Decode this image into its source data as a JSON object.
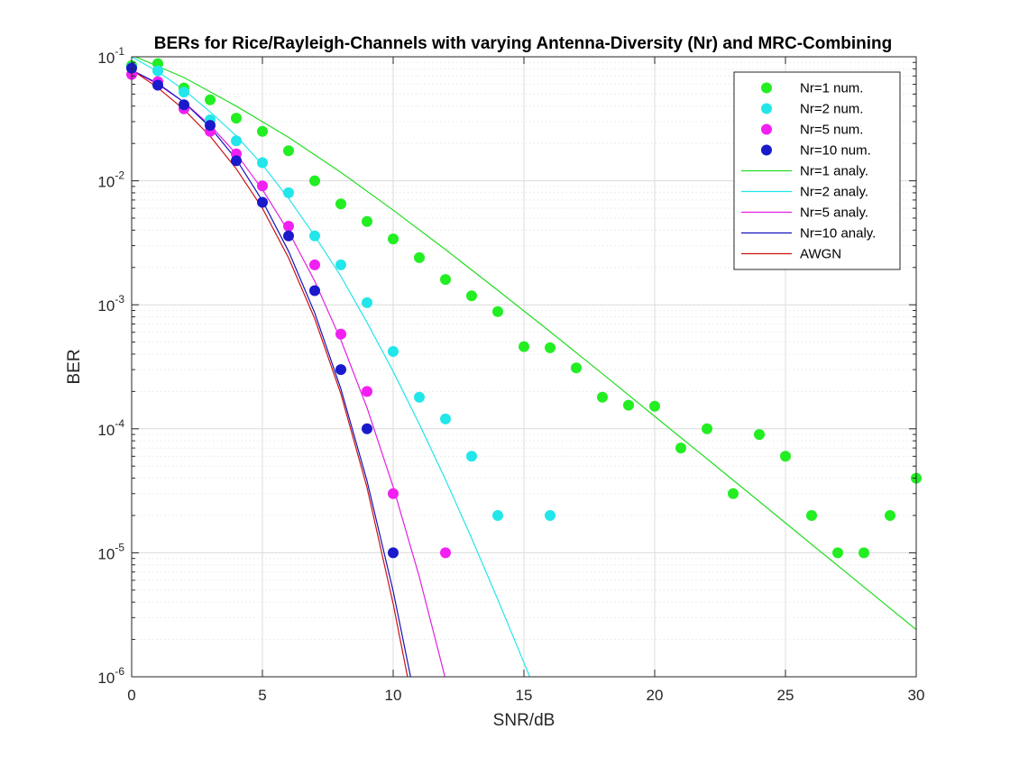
{
  "chart_data": {
    "type": "line",
    "title": "BERs for Rice/Rayleigh-Channels with varying Antenna-Diversity (Nr) and MRC-Combining",
    "xlabel": "SNR/dB",
    "ylabel": "BER",
    "xlim": [
      0,
      30
    ],
    "ylim": [
      1e-06,
      0.1
    ],
    "yscale": "log",
    "grid": true,
    "minor_grid": true,
    "legend_position": "top-right",
    "x_ticks": [
      "0",
      "5",
      "10",
      "15",
      "20",
      "25",
      "30"
    ],
    "y_ticks": [
      {
        "base": "10",
        "exp": "-6"
      },
      {
        "base": "10",
        "exp": "-5"
      },
      {
        "base": "10",
        "exp": "-4"
      },
      {
        "base": "10",
        "exp": "-3"
      },
      {
        "base": "10",
        "exp": "-2"
      },
      {
        "base": "10",
        "exp": "-1"
      }
    ],
    "series": [
      {
        "name": "Nr=1 num.",
        "kind": "markers",
        "color": "#22ee22",
        "x": [
          0,
          1,
          2,
          3,
          4,
          5,
          6,
          7,
          8,
          9,
          10,
          11,
          12,
          13,
          14,
          15,
          16,
          17,
          18,
          19,
          20,
          21,
          22,
          23,
          24,
          25,
          26,
          27,
          28,
          29,
          30
        ],
        "y": [
          0.085,
          0.088,
          0.056,
          0.045,
          0.032,
          0.025,
          0.0175,
          0.01,
          0.0065,
          0.0047,
          0.0034,
          0.0024,
          0.0016,
          0.00118,
          0.00088,
          0.00046,
          0.00045,
          0.00031,
          0.00018,
          0.000155,
          0.000152,
          7e-05,
          0.0001,
          3e-05,
          9e-05,
          6e-05,
          2e-05,
          1e-05,
          1e-05,
          2e-05,
          4e-05
        ]
      },
      {
        "name": "Nr=2 num.",
        "kind": "markers",
        "color": "#22e6ea",
        "x": [
          0,
          1,
          2,
          3,
          4,
          5,
          6,
          7,
          8,
          9,
          10,
          11,
          12,
          13,
          14,
          16
        ],
        "y": [
          0.082,
          0.077,
          0.052,
          0.031,
          0.021,
          0.014,
          0.008,
          0.0036,
          0.0021,
          0.00104,
          0.00042,
          0.00018,
          0.00012,
          6e-05,
          2e-05,
          2e-05
        ]
      },
      {
        "name": "Nr=5 num.",
        "kind": "markers",
        "color": "#f21ff2",
        "x": [
          0,
          1,
          2,
          3,
          4,
          5,
          6,
          7,
          8,
          9,
          10,
          12
        ],
        "y": [
          0.072,
          0.063,
          0.038,
          0.025,
          0.0165,
          0.0091,
          0.0043,
          0.0021,
          0.00058,
          0.0002,
          3e-05,
          1e-05
        ]
      },
      {
        "name": "Nr=10 num.",
        "kind": "markers",
        "color": "#1a1acc",
        "x": [
          0,
          1,
          2,
          3,
          4,
          5,
          6,
          7,
          8,
          9,
          10
        ],
        "y": [
          0.081,
          0.059,
          0.041,
          0.028,
          0.0145,
          0.0067,
          0.0036,
          0.0013,
          0.0003,
          0.0001,
          1e-05
        ]
      },
      {
        "name": "Nr=1 analy.",
        "kind": "line",
        "color": "#22dd22",
        "x": [
          0,
          2,
          4,
          6,
          8,
          10,
          12,
          14,
          16,
          18,
          20,
          22,
          24,
          26,
          28,
          30
        ],
        "y": [
          0.103,
          0.068,
          0.04,
          0.0224,
          0.0117,
          0.0058,
          0.00279,
          0.00131,
          0.000607,
          0.000278,
          0.000126,
          5.73e-05,
          2.59e-05,
          1.17e-05,
          5.3e-06,
          2.4e-06
        ]
      },
      {
        "name": "Nr=2 analy.",
        "kind": "line",
        "color": "#22e6ea",
        "x": [
          0,
          1,
          2,
          3,
          4,
          5,
          6,
          7,
          8,
          9,
          10,
          11,
          12,
          13,
          14,
          15,
          16,
          17,
          17.9
        ],
        "y": [
          0.1,
          0.076,
          0.054,
          0.036,
          0.023,
          0.0135,
          0.0072,
          0.0036,
          0.0017,
          0.00072,
          0.00029,
          0.000109,
          3.9e-05,
          1.31e-05,
          4.2e-06,
          1.3e-06,
          4e-07,
          1.2e-07,
          1e-06
        ]
      },
      {
        "name": "Nr=5 analy.",
        "kind": "line",
        "color": "#e21fe2",
        "x": [
          0,
          1,
          2,
          3,
          4,
          5,
          6,
          7,
          8,
          9,
          10,
          11,
          12,
          12.5
        ],
        "y": [
          0.078,
          0.06,
          0.043,
          0.028,
          0.0165,
          0.0085,
          0.0039,
          0.00155,
          0.00052,
          0.000148,
          3.4e-05,
          6.4e-06,
          9.6e-07,
          1e-06
        ]
      },
      {
        "name": "Nr=10 analy.",
        "kind": "line",
        "color": "#1212bb",
        "x": [
          0,
          1,
          2,
          3,
          4,
          5,
          6,
          7,
          8,
          9,
          10,
          11,
          11.4
        ],
        "y": [
          0.078,
          0.061,
          0.043,
          0.027,
          0.0149,
          0.0069,
          0.0027,
          0.00086,
          0.00021,
          3.8e-05,
          4.9e-06,
          4.5e-07,
          1e-06
        ]
      },
      {
        "name": "AWGN",
        "kind": "line",
        "color": "#cc1111",
        "x": [
          0,
          1,
          2,
          3,
          4,
          5,
          6,
          7,
          8,
          9,
          10,
          10.55
        ],
        "y": [
          0.0786,
          0.0563,
          0.0375,
          0.0229,
          0.0125,
          0.006,
          0.00239,
          0.000773,
          0.000191,
          3.36e-05,
          3.87e-06,
          1e-06
        ]
      }
    ]
  }
}
